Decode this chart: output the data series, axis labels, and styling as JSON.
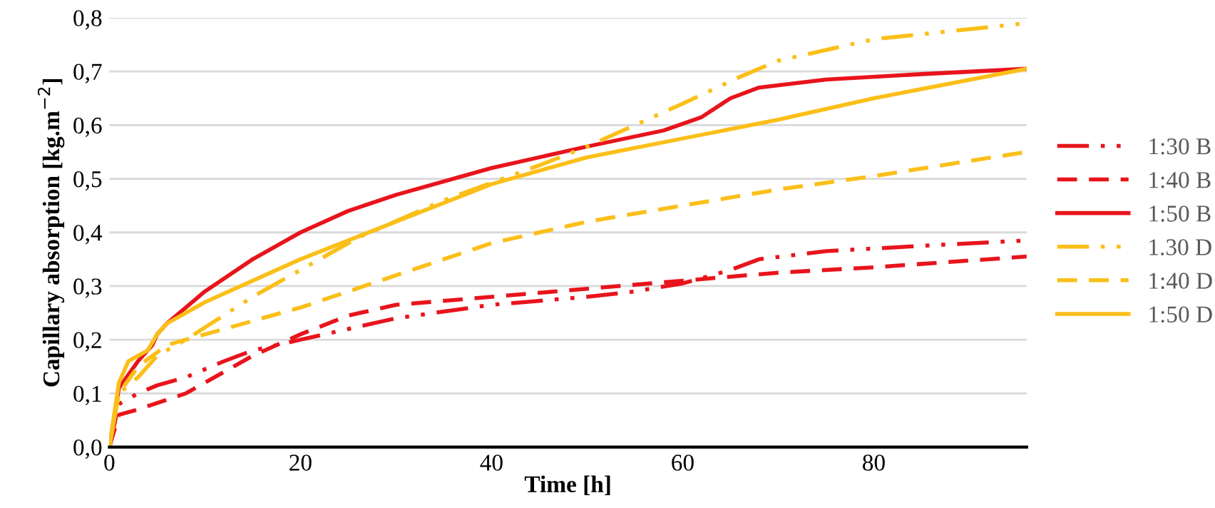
{
  "chart_data": {
    "type": "line",
    "xlabel": "Time [h]",
    "ylabel": "Capillary absorption [kg.m$^{−2}$]",
    "xlim": [
      0,
      96
    ],
    "xticks": [
      0,
      20,
      40,
      60,
      80
    ],
    "ylim": [
      0,
      0.8
    ],
    "yticks": [
      {
        "value": 0,
        "label": "0,0"
      },
      {
        "value": 0.1,
        "label": "0,1"
      },
      {
        "value": 0.2,
        "label": "0,2"
      },
      {
        "value": 0.3,
        "label": "0,3"
      },
      {
        "value": 0.4,
        "label": "0,4"
      },
      {
        "value": 0.5,
        "label": "0,5"
      },
      {
        "value": 0.6,
        "label": "0,6"
      },
      {
        "value": 0.7,
        "label": "0,7"
      },
      {
        "value": 0.8,
        "label": "0,8"
      }
    ],
    "grid": "y",
    "legend": "right",
    "marker": "none",
    "series": [
      {
        "name": "1:30 B",
        "color": "#e8141c",
        "line_style": "dashdotdot",
        "x": [
          0,
          1,
          3,
          5,
          8,
          12,
          15,
          20,
          30,
          40,
          50,
          55,
          60,
          65,
          68,
          75,
          85,
          96
        ],
        "values": [
          0,
          0.08,
          0.1,
          0.115,
          0.13,
          0.16,
          0.18,
          0.2,
          0.24,
          0.265,
          0.28,
          0.29,
          0.305,
          0.33,
          0.35,
          0.365,
          0.375,
          0.385
        ]
      },
      {
        "name": "1:40 B",
        "color": "#e8141c",
        "line_style": "dashed",
        "x": [
          0,
          1,
          3,
          8,
          15,
          20,
          25,
          30,
          40,
          50,
          60,
          70,
          80,
          96
        ],
        "values": [
          0,
          0.06,
          0.07,
          0.1,
          0.17,
          0.21,
          0.245,
          0.265,
          0.28,
          0.295,
          0.31,
          0.325,
          0.335,
          0.355
        ]
      },
      {
        "name": "1:50 B",
        "color": "#e8141c",
        "line_style": "solid",
        "x": [
          0,
          1,
          3,
          4.5,
          5,
          6,
          10,
          15,
          20,
          25,
          30,
          40,
          50,
          58,
          62,
          65,
          68,
          75,
          85,
          96
        ],
        "values": [
          0,
          0.11,
          0.16,
          0.19,
          0.21,
          0.23,
          0.29,
          0.35,
          0.4,
          0.44,
          0.47,
          0.52,
          0.56,
          0.59,
          0.615,
          0.65,
          0.67,
          0.685,
          0.695,
          0.705
        ]
      },
      {
        "name": "1.30 D",
        "color": "#fbbf19",
        "line_style": "dashdotdot",
        "x": [
          0,
          1,
          3,
          5,
          8,
          15,
          20,
          26,
          35,
          45,
          50,
          60,
          66,
          70,
          80,
          96
        ],
        "values": [
          0,
          0.1,
          0.13,
          0.17,
          0.2,
          0.28,
          0.33,
          0.39,
          0.46,
          0.525,
          0.56,
          0.64,
          0.69,
          0.72,
          0.76,
          0.79
        ]
      },
      {
        "name": "1:40 D",
        "color": "#fbbf19",
        "line_style": "dashed",
        "x": [
          0,
          1,
          3,
          6,
          10,
          20,
          30,
          40,
          50,
          60,
          70,
          80,
          96
        ],
        "values": [
          0,
          0.1,
          0.15,
          0.19,
          0.21,
          0.26,
          0.32,
          0.38,
          0.42,
          0.45,
          0.48,
          0.505,
          0.55
        ]
      },
      {
        "name": "1:50 D",
        "color": "#fbbf19",
        "line_style": "solid",
        "x": [
          0,
          1,
          2,
          4,
          5,
          6,
          10,
          20,
          30,
          40,
          50,
          60,
          70,
          80,
          96
        ],
        "values": [
          0,
          0.12,
          0.16,
          0.18,
          0.21,
          0.23,
          0.27,
          0.35,
          0.42,
          0.49,
          0.54,
          0.575,
          0.61,
          0.65,
          0.705
        ]
      }
    ]
  }
}
